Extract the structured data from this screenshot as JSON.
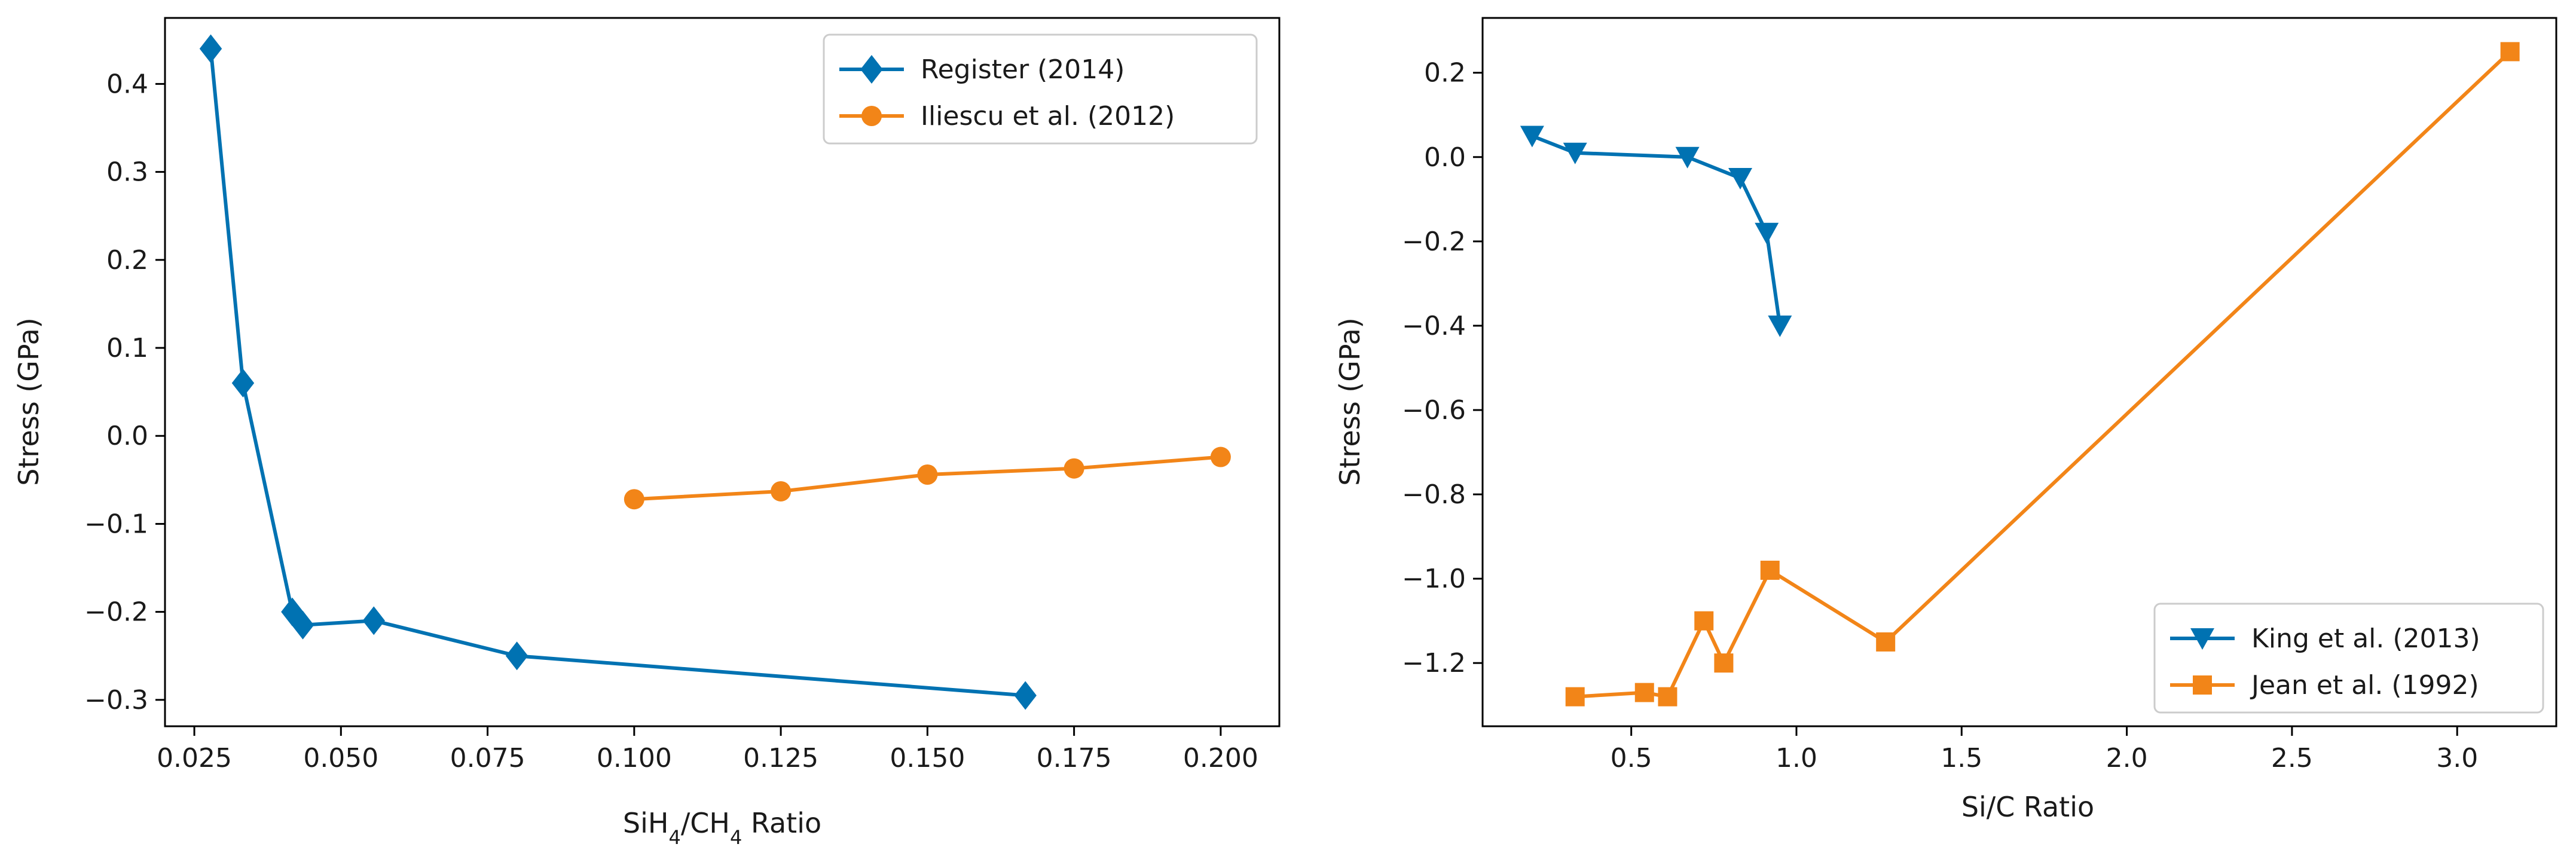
{
  "chart_data": [
    {
      "type": "line",
      "title": "",
      "xlabel": "SiH4/CH4 Ratio",
      "xlabel_parts": {
        "a": "SiH",
        "a_sub": "4",
        "slash": "/CH",
        "b_sub": "4",
        "suffix": " Ratio"
      },
      "ylabel": "Stress (GPa)",
      "xlim": [
        0.02,
        0.21
      ],
      "ylim": [
        -0.33,
        0.475
      ],
      "xticks": [
        0.025,
        0.05,
        0.075,
        0.1,
        0.125,
        0.15,
        0.175,
        0.2
      ],
      "xtick_labels": [
        "0.025",
        "0.050",
        "0.075",
        "0.100",
        "0.125",
        "0.150",
        "0.175",
        "0.200"
      ],
      "yticks": [
        -0.3,
        -0.2,
        -0.1,
        0.0,
        0.1,
        0.2,
        0.3,
        0.4
      ],
      "ytick_labels": [
        "−0.3",
        "−0.2",
        "−0.1",
        "0.0",
        "0.1",
        "0.2",
        "0.3",
        "0.4"
      ],
      "legend_position": "top-right",
      "series": [
        {
          "name": "Register (2014)",
          "color": "#0072b2",
          "marker": "diamond",
          "x": [
            0.0278,
            0.0333,
            0.0417,
            0.0435,
            0.0556,
            0.08,
            0.1667
          ],
          "y": [
            0.44,
            0.06,
            -0.2,
            -0.215,
            -0.21,
            -0.25,
            -0.295
          ]
        },
        {
          "name": "Iliescu et al. (2012)",
          "color": "#f28518",
          "marker": "circle",
          "x": [
            0.1,
            0.125,
            0.15,
            0.175,
            0.2
          ],
          "y": [
            -0.072,
            -0.063,
            -0.044,
            -0.037,
            -0.024
          ]
        }
      ]
    },
    {
      "type": "line",
      "title": "",
      "xlabel": "Si/C Ratio",
      "ylabel": "Stress (GPa)",
      "xlim": [
        0.05,
        3.3
      ],
      "ylim": [
        -1.35,
        0.33
      ],
      "xticks": [
        0.5,
        1.0,
        1.5,
        2.0,
        2.5,
        3.0
      ],
      "xtick_labels": [
        "0.5",
        "1.0",
        "1.5",
        "2.0",
        "2.5",
        "3.0"
      ],
      "yticks": [
        -1.2,
        -1.0,
        -0.8,
        -0.6,
        -0.4,
        -0.2,
        0.0,
        0.2
      ],
      "ytick_labels": [
        "−1.2",
        "−1.0",
        "−0.8",
        "−0.6",
        "−0.4",
        "−0.2",
        "0.0",
        "0.2"
      ],
      "legend_position": "bottom-right",
      "series": [
        {
          "name": "King et al. (2013)",
          "color": "#0072b2",
          "marker": "triangle-down",
          "x": [
            0.2,
            0.33,
            0.67,
            0.83,
            0.91,
            0.95
          ],
          "y": [
            0.05,
            0.01,
            0.0,
            -0.05,
            -0.18,
            -0.4
          ]
        },
        {
          "name": "Jean et al. (1992)",
          "color": "#f28518",
          "marker": "square",
          "x": [
            0.33,
            0.54,
            0.61,
            0.72,
            0.78,
            0.92,
            1.27,
            3.16
          ],
          "y": [
            -1.28,
            -1.27,
            -1.28,
            -1.1,
            -1.2,
            -0.98,
            -1.15,
            0.25
          ]
        }
      ]
    }
  ]
}
